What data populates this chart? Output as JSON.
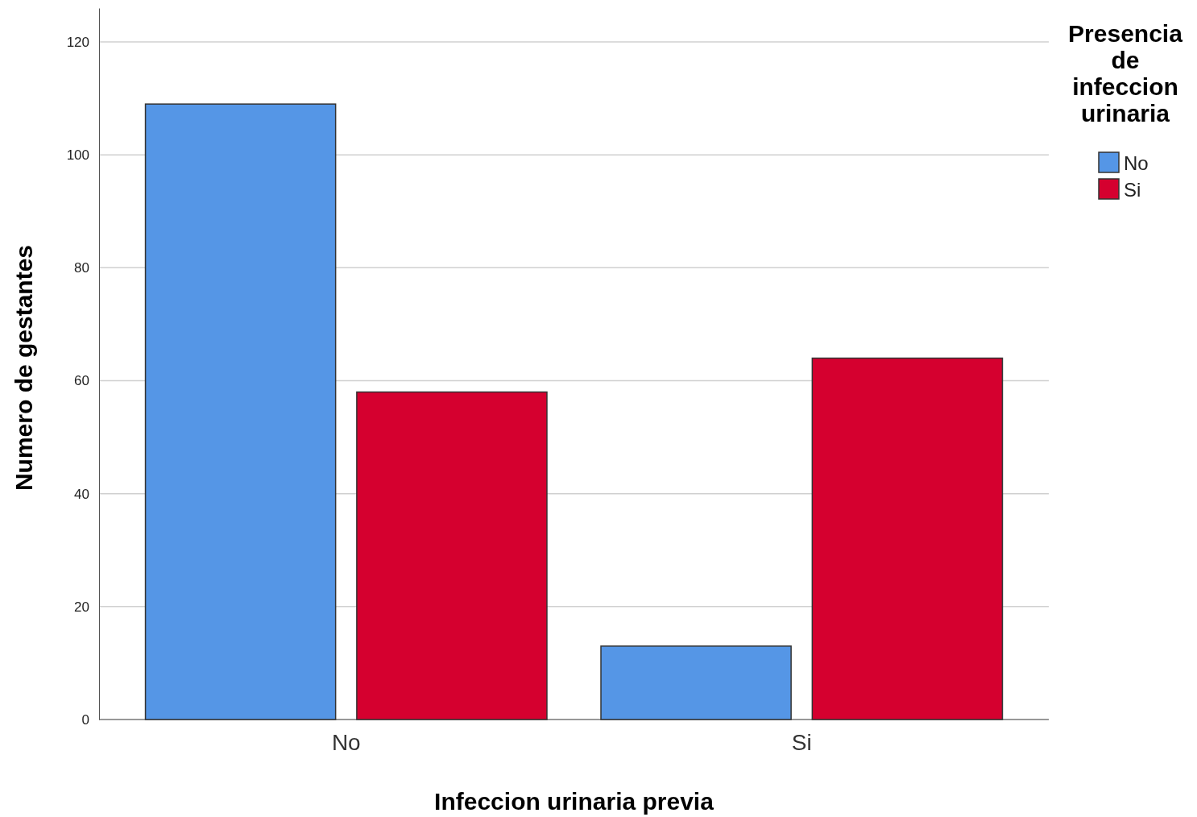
{
  "chart_data": {
    "type": "bar",
    "xlabel": "Infeccion urinaria previa",
    "ylabel": "Numero de gestantes",
    "legend_title": "Presencia de infeccion urinaria",
    "categories": [
      "No",
      "Si"
    ],
    "series": [
      {
        "name": "No",
        "color": "#5596e6",
        "values": [
          109,
          13
        ]
      },
      {
        "name": "Si",
        "color": "#d5002f",
        "values": [
          58,
          64
        ]
      }
    ],
    "ylim": [
      0,
      126
    ],
    "yticks": [
      0,
      20,
      40,
      60,
      80,
      100,
      120
    ],
    "grid": "y",
    "legend": "top right"
  }
}
